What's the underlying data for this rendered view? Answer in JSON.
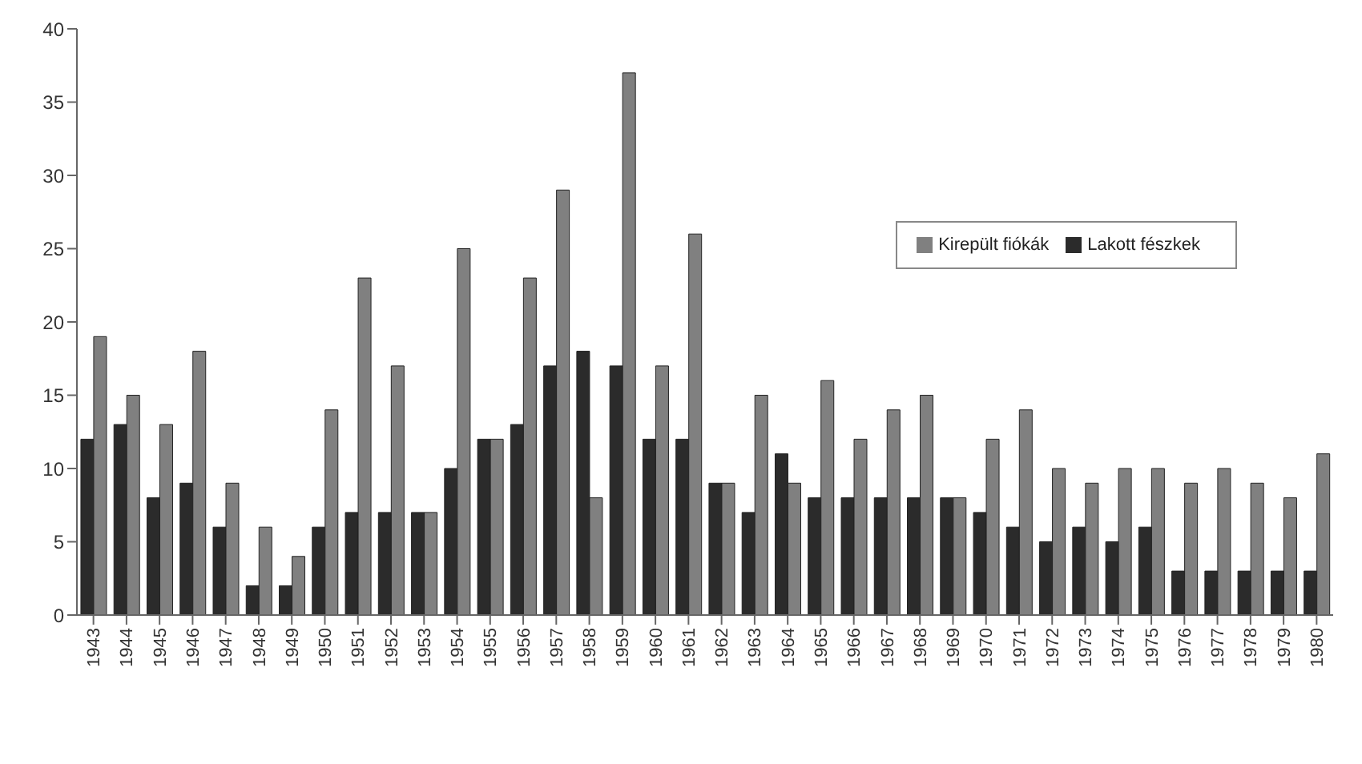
{
  "chart_data": {
    "type": "bar",
    "categories": [
      "1943",
      "1944",
      "1945",
      "1946",
      "1947",
      "1948",
      "1949",
      "1950",
      "1951",
      "1952",
      "1953",
      "1954",
      "1955",
      "1956",
      "1957",
      "1958",
      "1959",
      "1960",
      "1961",
      "1962",
      "1963",
      "1964",
      "1965",
      "1966",
      "1967",
      "1968",
      "1969",
      "1970",
      "1971",
      "1972",
      "1973",
      "1974",
      "1975",
      "1976",
      "1977",
      "1978",
      "1979",
      "1980"
    ],
    "series": [
      {
        "name": "Lakott fészkek",
        "color": "#2b2b2b",
        "values": [
          12,
          13,
          8,
          9,
          6,
          2,
          2,
          6,
          7,
          7,
          7,
          10,
          12,
          13,
          17,
          18,
          17,
          12,
          12,
          9,
          7,
          11,
          8,
          8,
          8,
          8,
          8,
          7,
          6,
          5,
          6,
          5,
          6,
          3,
          3,
          3,
          3,
          3
        ]
      },
      {
        "name": "Kirepült fiókák",
        "color": "#808080",
        "values": [
          19,
          15,
          13,
          18,
          9,
          6,
          4,
          14,
          23,
          17,
          7,
          25,
          12,
          23,
          29,
          8,
          37,
          17,
          26,
          9,
          15,
          9,
          16,
          12,
          14,
          15,
          8,
          12,
          14,
          10,
          9,
          10,
          10,
          9,
          10,
          9,
          8,
          11
        ]
      }
    ],
    "ylim": [
      0,
      40
    ],
    "yticks": [
      0,
      5,
      10,
      15,
      20,
      25,
      30,
      35,
      40
    ],
    "grid": false,
    "legend": "top right"
  }
}
